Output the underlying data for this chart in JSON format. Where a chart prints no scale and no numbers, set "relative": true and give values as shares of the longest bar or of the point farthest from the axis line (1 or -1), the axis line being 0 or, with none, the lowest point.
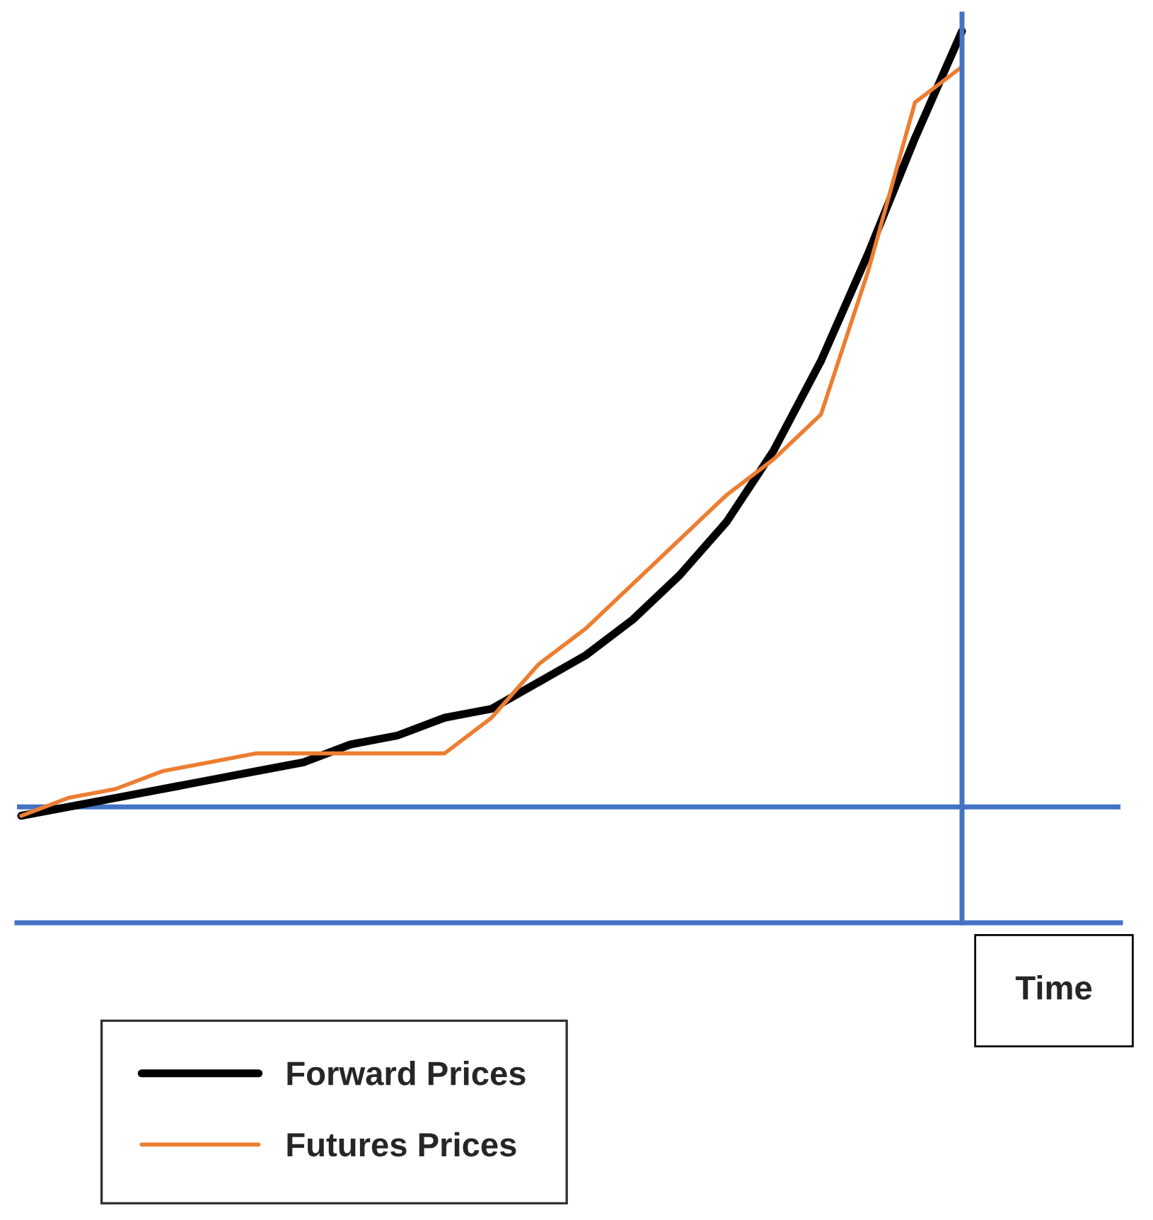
{
  "chart_data": {
    "type": "line",
    "relative": true,
    "xlabel": "Time",
    "legend": "bottom",
    "line_style": "solid",
    "marker": "none",
    "categories": [
      null,
      null,
      null,
      null,
      null,
      null,
      null,
      null,
      null,
      null,
      null,
      null,
      null,
      null,
      null,
      null,
      null,
      null,
      null,
      null,
      null
    ],
    "series": [
      {
        "name": "Forward Prices",
        "color": "#000000",
        "values": [
          0.12,
          0.13,
          0.14,
          0.15,
          0.16,
          0.17,
          0.18,
          0.2,
          0.21,
          0.23,
          0.24,
          0.27,
          0.3,
          0.34,
          0.39,
          0.45,
          0.53,
          0.63,
          0.75,
          0.88,
          1.0
        ]
      },
      {
        "name": "Futures Prices",
        "color": "#ed7d31",
        "values": [
          0.12,
          0.14,
          0.15,
          0.17,
          0.18,
          0.19,
          0.19,
          0.19,
          0.19,
          0.19,
          0.23,
          0.29,
          0.33,
          0.38,
          0.43,
          0.48,
          0.52,
          0.57,
          0.73,
          0.92,
          0.96
        ]
      }
    ],
    "ref_lines": [
      {
        "axis": "y",
        "value": 0.13,
        "color": "#4472c4"
      }
    ]
  }
}
